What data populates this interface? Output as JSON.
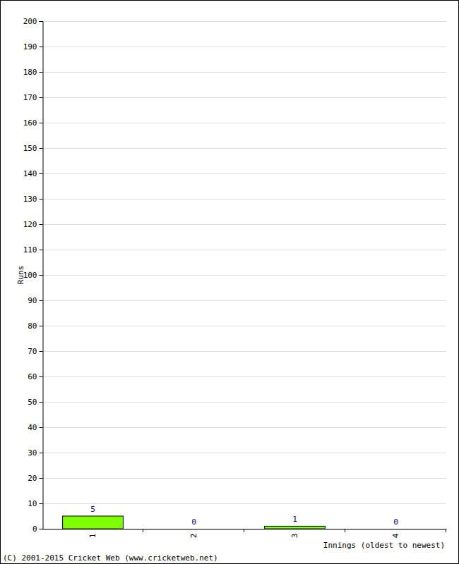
{
  "chart_data": {
    "type": "bar",
    "categories": [
      "1",
      "2",
      "3",
      "4"
    ],
    "values": [
      5,
      0,
      1,
      0
    ],
    "color": "#80ff00",
    "x_label": "Innings (oldest to newest)",
    "y_label": "Runs",
    "annotations": [
      "(C) 2001-2015 Cricket Web (www.cricketweb.net)"
    ],
    "ylim": [
      0,
      200
    ],
    "yticks": [
      0,
      10,
      20,
      30,
      40,
      50,
      60,
      70,
      80,
      90,
      100,
      110,
      120,
      130,
      140,
      150,
      160,
      170,
      180,
      190,
      200
    ],
    "grid": true,
    "data_labels": true
  }
}
